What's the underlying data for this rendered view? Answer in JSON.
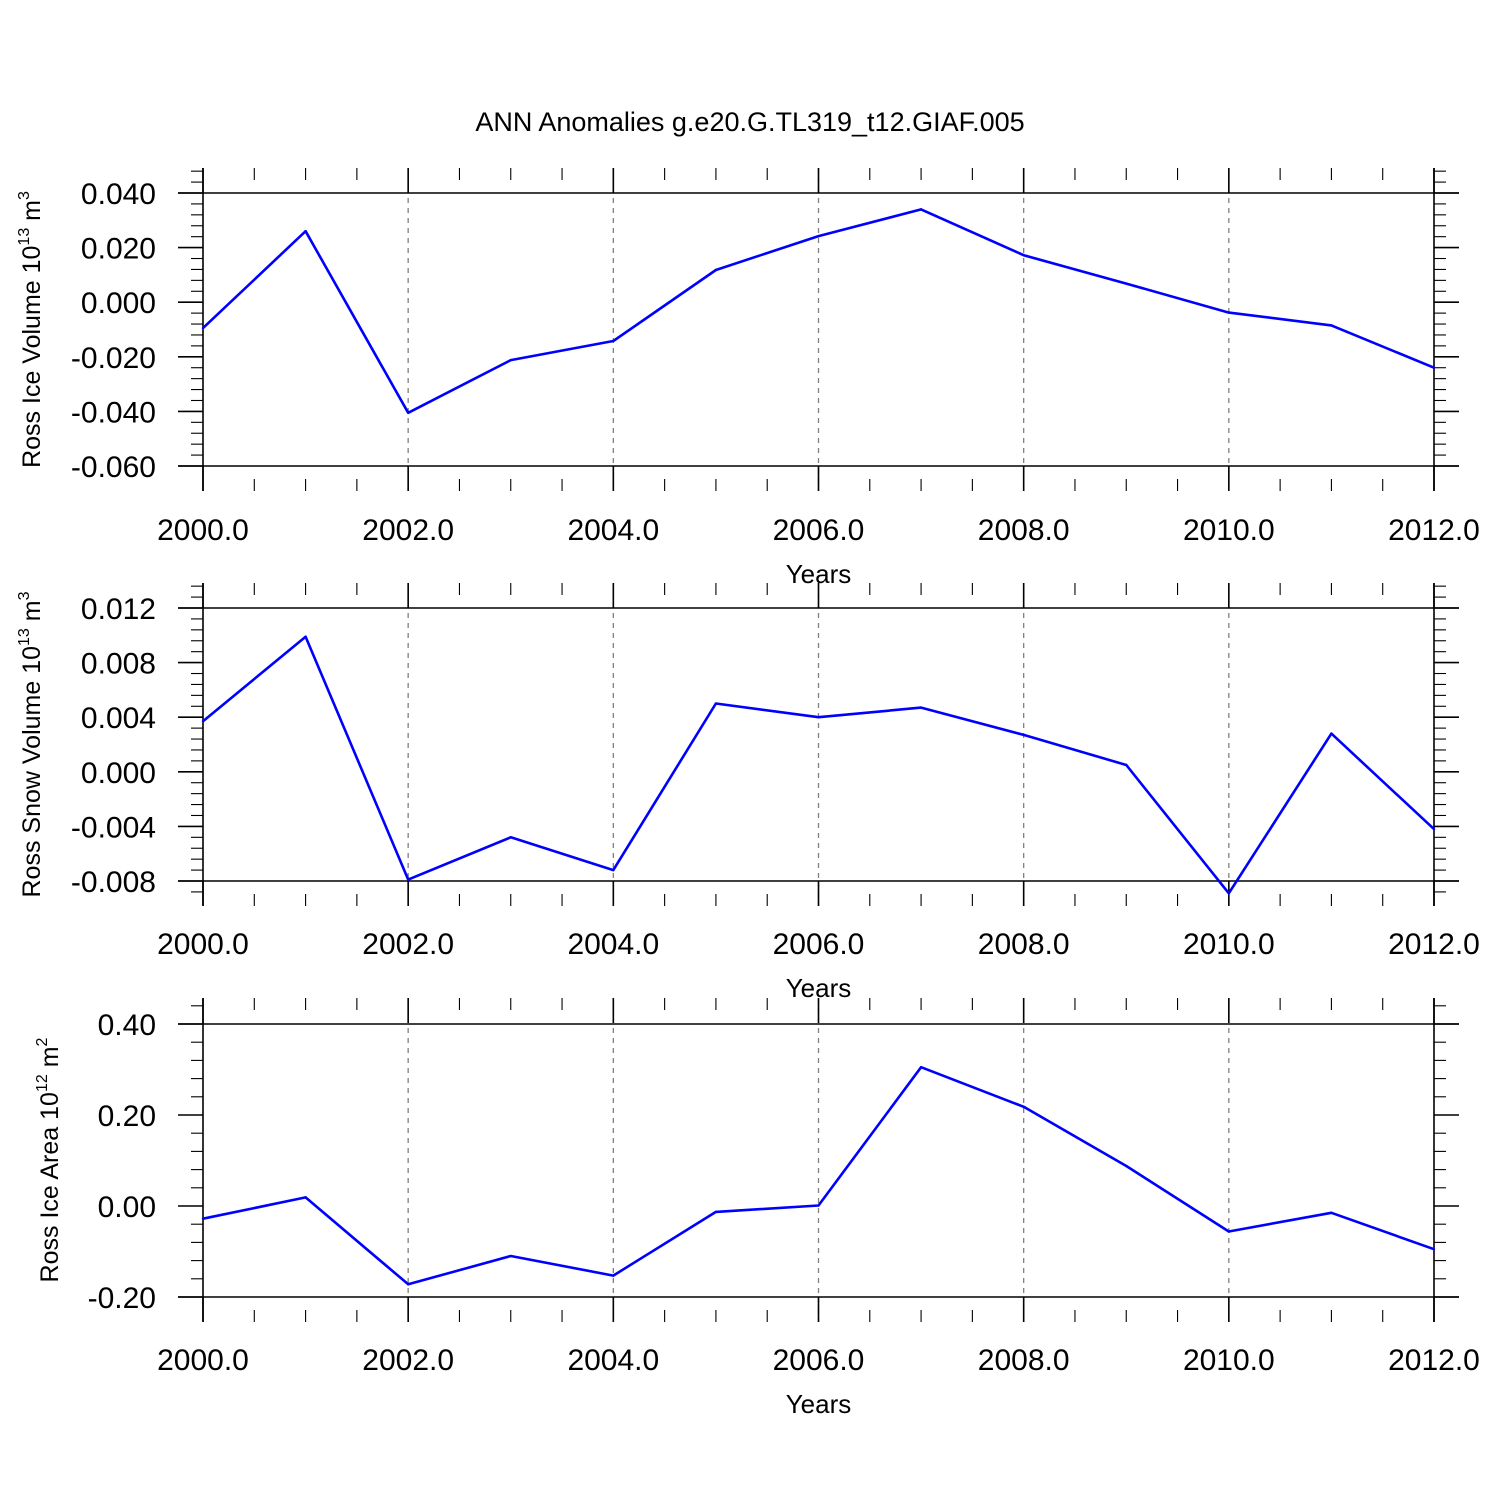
{
  "title": "ANN Anomalies g.e20.G.TL319_t12.GIAF.005",
  "colors": {
    "line": "#0000ff",
    "axis": "#000000",
    "grid": "#808080"
  },
  "chart_data": [
    {
      "type": "line",
      "ylabel": "Ross Ice Volume 10",
      "ylabel_exp": "13",
      "ylabel_unit": "m",
      "ylabel_unit_exp": "3",
      "xlabel": "Years",
      "xlim": [
        2000,
        2012
      ],
      "ylim": [
        -0.06,
        0.05
      ],
      "x_ticks": [
        "2000.0",
        "2002.0",
        "2004.0",
        "2006.0",
        "2008.0",
        "2010.0",
        "2012.0"
      ],
      "y_ticks": [
        {
          "value": 0.04,
          "label": "0.040"
        },
        {
          "value": 0.02,
          "label": "0.020"
        },
        {
          "value": 0.0,
          "label": "0.000"
        },
        {
          "value": -0.02,
          "label": "-0.020"
        },
        {
          "value": -0.04,
          "label": "-0.040"
        },
        {
          "value": -0.06,
          "label": "-0.060"
        }
      ],
      "grid": "vertical dashed",
      "x": [
        2000,
        2001,
        2002,
        2003,
        2004,
        2005,
        2006,
        2007,
        2008,
        2009,
        2010,
        2011,
        2012
      ],
      "values": [
        -0.0095,
        0.026,
        -0.0405,
        -0.0212,
        -0.0142,
        0.0118,
        0.0242,
        0.034,
        0.0172,
        0.0068,
        -0.0038,
        -0.0085,
        -0.024
      ]
    },
    {
      "type": "line",
      "ylabel": "Ross Snow Volume 10",
      "ylabel_exp": "13",
      "ylabel_unit": "m",
      "ylabel_unit_exp": "3",
      "xlabel": "Years",
      "xlim": [
        2000,
        2012
      ],
      "ylim": [
        -0.009,
        0.014
      ],
      "x_ticks": [
        "2000.0",
        "2002.0",
        "2004.0",
        "2006.0",
        "2008.0",
        "2010.0",
        "2012.0"
      ],
      "y_ticks": [
        {
          "value": 0.012,
          "label": "0.012"
        },
        {
          "value": 0.008,
          "label": "0.008"
        },
        {
          "value": 0.004,
          "label": "0.004"
        },
        {
          "value": 0.0,
          "label": "0.000"
        },
        {
          "value": -0.004,
          "label": "-0.004"
        },
        {
          "value": -0.008,
          "label": "-0.008"
        }
      ],
      "grid": "vertical dashed",
      "x": [
        2000,
        2001,
        2002,
        2003,
        2004,
        2005,
        2006,
        2007,
        2008,
        2009,
        2010,
        2011,
        2012
      ],
      "values": [
        0.0037,
        0.0099,
        -0.0079,
        -0.0048,
        -0.0072,
        0.005,
        0.004,
        0.0047,
        0.0027,
        0.0005,
        -0.0089,
        0.0028,
        -0.0042
      ]
    },
    {
      "type": "line",
      "ylabel": "Ross Ice Area 10",
      "ylabel_exp": "12",
      "ylabel_unit": "m",
      "ylabel_unit_exp": "2",
      "xlabel": "Years",
      "xlim": [
        2000,
        2012
      ],
      "ylim": [
        -0.2,
        0.46
      ],
      "x_ticks": [
        "2000.0",
        "2002.0",
        "2004.0",
        "2006.0",
        "2008.0",
        "2010.0",
        "2012.0"
      ],
      "y_ticks": [
        {
          "value": 0.4,
          "label": "0.40"
        },
        {
          "value": 0.2,
          "label": "0.20"
        },
        {
          "value": 0.0,
          "label": "0.00"
        },
        {
          "value": -0.2,
          "label": "-0.20"
        }
      ],
      "grid": "vertical dashed",
      "x": [
        2000,
        2001,
        2002,
        2003,
        2004,
        2005,
        2006,
        2007,
        2008,
        2009,
        2010,
        2011,
        2012
      ],
      "values": [
        -0.028,
        0.019,
        -0.172,
        -0.11,
        -0.153,
        -0.013,
        0.001,
        0.305,
        0.218,
        0.088,
        -0.056,
        -0.015,
        -0.095
      ]
    }
  ]
}
